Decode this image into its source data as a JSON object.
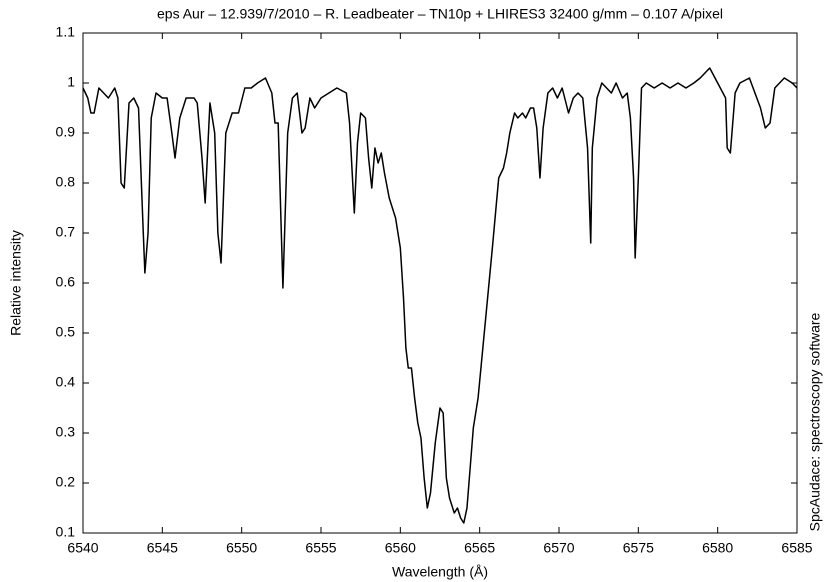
{
  "chart_data": {
    "type": "line",
    "title": "eps Aur – 12.939/7/2010 – R. Leadbeater – TN10p + LHIRES3 32400 g/mm – 0.107 A/pixel",
    "x_label": "Wavelength (Å)",
    "y_label": "Relative intensity",
    "annotation": "SpcAudace: spectroscopy software",
    "xlim": [
      6540,
      6585
    ],
    "ylim": [
      0.1,
      1.1
    ],
    "xticks": [
      6540,
      6545,
      6550,
      6555,
      6560,
      6565,
      6570,
      6575,
      6580,
      6585
    ],
    "yticks": [
      0.1,
      0.2,
      0.3,
      0.4,
      0.5,
      0.6,
      0.7,
      0.8,
      0.9,
      1,
      1.1
    ],
    "grid": false,
    "series": [
      {
        "color": "#000000",
        "x": [
          6540,
          6540.3,
          6540.5,
          6540.7,
          6541,
          6541.3,
          6541.6,
          6542,
          6542.2,
          6542.4,
          6542.6,
          6542.9,
          6543.2,
          6543.5,
          6543.8,
          6543.9,
          6544.1,
          6544.3,
          6544.6,
          6545,
          6545.3,
          6545.6,
          6545.8,
          6546.1,
          6546.5,
          6547,
          6547.2,
          6547.5,
          6547.7,
          6548,
          6548.3,
          6548.5,
          6548.7,
          6549,
          6549.4,
          6549.8,
          6550.2,
          6550.6,
          6551,
          6551.5,
          6551.9,
          6552.1,
          6552.3,
          6552.6,
          6552.9,
          6553.2,
          6553.5,
          6553.8,
          6554,
          6554.3,
          6554.6,
          6555,
          6555.5,
          6556,
          6556.6,
          6556.8,
          6557.1,
          6557.3,
          6557.5,
          6557.8,
          6558,
          6558.2,
          6558.4,
          6558.6,
          6558.8,
          6559,
          6559.3,
          6559.7,
          6560,
          6560.2,
          6560.35,
          6560.5,
          6560.7,
          6560.9,
          6561.1,
          6561.3,
          6561.5,
          6561.7,
          6561.9,
          6562.2,
          6562.5,
          6562.7,
          6562.9,
          6563.1,
          6563.4,
          6563.6,
          6563.8,
          6564,
          6564.2,
          6564.4,
          6564.6,
          6564.9,
          6565.2,
          6565.5,
          6565.8,
          6566,
          6566.2,
          6566.5,
          6566.7,
          6566.9,
          6567.2,
          6567.4,
          6567.7,
          6567.9,
          6568.2,
          6568.4,
          6568.6,
          6568.8,
          6569,
          6569.3,
          6569.6,
          6569.9,
          6570.2,
          6570.6,
          6570.9,
          6571.2,
          6571.5,
          6571.8,
          6572,
          6572.1,
          6572.4,
          6572.7,
          6573,
          6573.3,
          6573.6,
          6574,
          6574.3,
          6574.5,
          6574.7,
          6574.8,
          6575,
          6575.2,
          6575.5,
          6576,
          6576.5,
          6577,
          6577.5,
          6578,
          6578.5,
          6578.9,
          6579.5,
          6580,
          6580.5,
          6580.6,
          6580.8,
          6581.1,
          6581.4,
          6582,
          6582.7,
          6583,
          6583.3,
          6583.6,
          6584.2,
          6584.7,
          6585
        ],
        "values": [
          0.99,
          0.97,
          0.94,
          0.94,
          0.99,
          0.98,
          0.97,
          0.99,
          0.97,
          0.8,
          0.79,
          0.96,
          0.97,
          0.95,
          0.7,
          0.62,
          0.7,
          0.93,
          0.98,
          0.97,
          0.97,
          0.9,
          0.85,
          0.93,
          0.97,
          0.97,
          0.96,
          0.85,
          0.76,
          0.96,
          0.9,
          0.7,
          0.64,
          0.9,
          0.94,
          0.94,
          0.99,
          0.99,
          1.0,
          1.01,
          0.98,
          0.92,
          0.92,
          0.59,
          0.9,
          0.97,
          0.98,
          0.9,
          0.91,
          0.97,
          0.95,
          0.97,
          0.98,
          0.99,
          0.98,
          0.92,
          0.74,
          0.88,
          0.94,
          0.93,
          0.85,
          0.79,
          0.87,
          0.84,
          0.86,
          0.82,
          0.77,
          0.73,
          0.67,
          0.57,
          0.47,
          0.43,
          0.43,
          0.37,
          0.32,
          0.29,
          0.21,
          0.15,
          0.18,
          0.28,
          0.35,
          0.34,
          0.21,
          0.17,
          0.14,
          0.15,
          0.13,
          0.12,
          0.15,
          0.23,
          0.31,
          0.37,
          0.47,
          0.57,
          0.67,
          0.74,
          0.81,
          0.83,
          0.86,
          0.9,
          0.94,
          0.93,
          0.94,
          0.93,
          0.95,
          0.95,
          0.91,
          0.81,
          0.91,
          0.98,
          0.99,
          0.97,
          0.99,
          0.94,
          0.97,
          0.98,
          0.97,
          0.87,
          0.68,
          0.87,
          0.97,
          1.0,
          0.99,
          0.98,
          1.0,
          0.97,
          0.98,
          0.93,
          0.81,
          0.65,
          0.81,
          0.99,
          1.0,
          0.99,
          1.0,
          0.99,
          1.0,
          0.99,
          1.0,
          1.01,
          1.03,
          1.0,
          0.97,
          0.87,
          0.86,
          0.98,
          1.0,
          1.01,
          0.95,
          0.91,
          0.92,
          0.99,
          1.01,
          1.0,
          0.99
        ]
      }
    ]
  }
}
